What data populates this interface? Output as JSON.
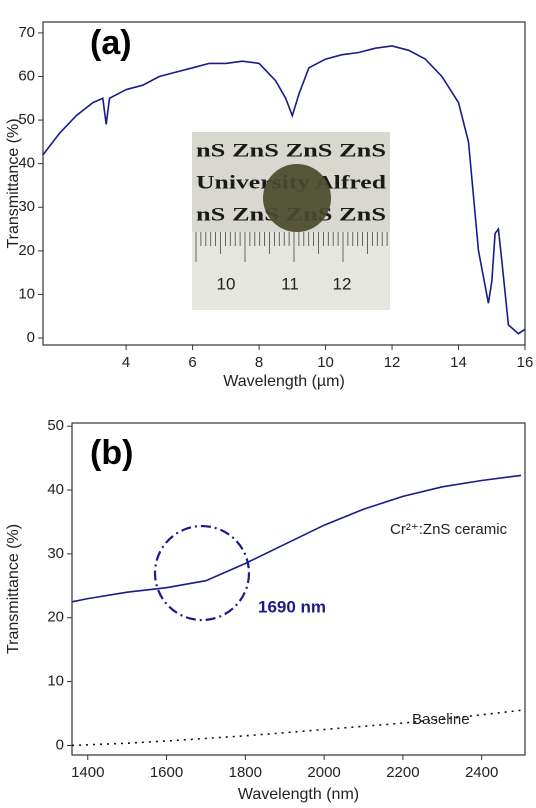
{
  "chart_data": [
    {
      "type": "line",
      "panel_label": "(a)",
      "xlabel": "Wavelength (µm)",
      "ylabel": "Transmittance (%)",
      "xlim": [
        1.5,
        16
      ],
      "ylim": [
        -1.6,
        72.5
      ],
      "xticks": [
        4,
        6,
        8,
        10,
        12,
        14,
        16
      ],
      "yticks": [
        0,
        10,
        20,
        30,
        40,
        50,
        60,
        70
      ],
      "x": [
        1.5,
        2,
        2.5,
        3,
        3.3,
        3.4,
        3.5,
        4,
        4.5,
        5,
        5.5,
        6,
        6.5,
        7,
        7.5,
        8,
        8.5,
        8.8,
        9,
        9.2,
        9.5,
        10,
        10.5,
        11,
        11.5,
        12,
        12.5,
        13,
        13.5,
        14,
        14.3,
        14.6,
        14.9,
        15.0,
        15.1,
        15.2,
        15.3,
        15.5,
        15.8,
        16
      ],
      "series": [
        {
          "color": "#1a1a8c",
          "values": [
            42,
            47,
            51,
            54,
            55,
            49,
            55,
            57,
            58,
            60,
            61,
            62,
            63,
            63,
            63.5,
            63,
            59,
            55,
            51,
            56,
            62,
            64,
            65,
            65.5,
            66.5,
            67,
            66,
            64,
            60,
            54,
            45,
            20,
            8,
            13,
            24,
            25,
            18,
            3,
            1,
            2
          ]
        }
      ],
      "inset": {
        "lines": [
          "nS ZnS ZnS ZnS",
          "University Alfred",
          "nS ZnS ZnS ZnS"
        ],
        "ruler_labels": [
          "10",
          "11",
          "12"
        ]
      }
    },
    {
      "type": "line",
      "panel_label": "(b)",
      "xlabel": "Wavelength (nm)",
      "ylabel": "Transmittance (%)",
      "xlim": [
        1360,
        2510
      ],
      "ylim": [
        -1.5,
        50.5
      ],
      "xticks": [
        1400,
        1600,
        1800,
        2000,
        2200,
        2400
      ],
      "yticks": [
        0,
        10,
        20,
        30,
        40,
        50
      ],
      "x": [
        1360,
        1400,
        1500,
        1600,
        1700,
        1800,
        1900,
        2000,
        2100,
        2200,
        2300,
        2400,
        2500
      ],
      "series": [
        {
          "name": "Cr²⁺:ZnS ceramic",
          "color": "#1a1a8c",
          "values": [
            22.5,
            23,
            24,
            24.7,
            25.8,
            28.5,
            31.5,
            34.5,
            37,
            39,
            40.5,
            41.5,
            42.3
          ]
        },
        {
          "name": "Baseline",
          "color": "#111111",
          "dotted": true,
          "values": [
            0,
            0.1,
            0.35,
            0.7,
            1.1,
            1.5,
            2.0,
            2.5,
            3.0,
            3.5,
            4.1,
            4.8,
            5.5
          ]
        }
      ],
      "annotations": [
        "1690 nm"
      ]
    }
  ]
}
